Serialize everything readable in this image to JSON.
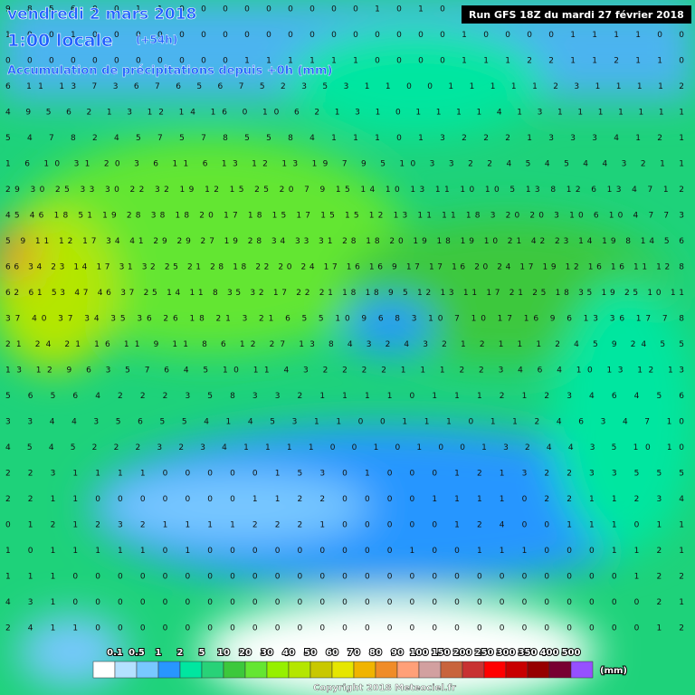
{
  "header": {
    "date": "vendredi 2 mars 2018",
    "time": "1:00 locale",
    "lead": "(+54h)",
    "subtitle": "Accumulation de précipitations depuis +0h (mm)",
    "run": "Run GFS 18Z du mardi 27 février 2018"
  },
  "grid_rows": [
    "9 8 5 6 0 0 1 1 0 0 0 0 0 0 0 0 0 1 0 1 0 0 0 0 0 0 0 0 0 0 0 0",
    "1 0 0 1 0 0 0 0 0 0 0 0 0 0 0 0 0 0 0 0 0 1 0 0 0 0 1 1 1 1 0 0",
    "0 0 0 0 0 0 0 0 0 0 0 1 1 1 1 1 1 0 0 0 0 1 1 1 2 2 1 1 2 1 1 0",
    "6 11 13 7 3 6 7 6 5 6 7 5 2 3 5 3 1 1 0 0 1 1 1 1 1 2 3 1 1 1 1 2",
    "4 9 5 6 2 1 3 12 14 16 0 10 6 2 1 3 1 0 1 1 1 1 4 1 3 1 1 1 1 1 1 1",
    "5 4 7 8 2 4 5 7 5 7 8 5 5 8 4 1 1 1 0 1 3 2 2 2 1 3 3 3 4 1 2 1",
    "1 6 10 31 20 3 6 11 6 13 12 13 19 7 9 5 10 3 3 2 2 4 5 4 5 4 4 3 2 1 1",
    "29 30 25 33 30 22 32 19 12 15 25 20 7 9 15 14 10 13 11 10 10 5 13 8 12 6 13 4 7 1 2",
    "45 46 18 51 19 28 38 18 20 17 18 15 17 15 15 12 13 11 11 18 3 20 20 3 10 6 10 4 7 7 3",
    "5 9 11 12 17 34 41 29 29 27 19 28 34 33 31 28 18 20 19 18 19 10 21 42 23 14 19 8 14 5 6",
    "66 34 23 14 17 31 32 25 21 28 18 22 20 24 17 16 16 9 17 17 16 20 24 17 19 12 16 16 11 12 8",
    "62 61 53 47 46 37 25 14 11 8 35 32 17 22 21 18 18 9 5 12 13 11 17 21 25 18 35 19 25 10 11",
    "37 40 37 34 35 36 26 18 21 3 21 6 5 5 10 9 6 8 3 10 7 10 17 16 9 6 13 36 17 7 8",
    "21 24 21 16 11 9 11 8 6 12 27 13 8 4 3 2 4 3 2 1 2 1 1 1 2 4 5 9 24 5 5",
    "13 12 9 6 3 5 7 6 4 5 10 11 4 3 2 2 2 2 1 1 1 2 2 3 4 6 4 10 13 12 13",
    "5 6 5 6 4 2 2 2 3 5 8 3 3 2 1 1 1 1 0 1 1 1 2 1 2 3 4 6 4 5 6",
    "3 3 4 4 3 5 6 5 5 4 1 4 5 3 1 1 0 0 1 1 1 0 1 1 2 4 6 3 4 7 10",
    "4 5 4 5 2 2 2 3 2 3 4 1 1 1 1 0 0 1 0 1 0 0 1 3 2 4 4 3 5 10 10",
    "2 2 3 1 1 1 1 0 0 0 0 0 1 5 3 0 1 0 0 0 1 2 1 3 2 2 3 3 5 5 5",
    "2 2 1 1 0 0 0 0 0 0 0 1 1 2 2 0 0 0 0 1 1 1 1 0 2 2 1 1 2 3 4",
    "0 1 2 1 2 3 2 1 1 1 1 2 2 2 1 0 0 0 0 0 1 2 4 0 0 1 1 1 0 1 1",
    "1 0 1 1 1 1 1 0 1 0 0 0 0 0 0 0 0 0 1 0 0 1 1 1 0 0 0 1 1 2 1",
    "1 1 1 0 0 0 0 0 0 0 0 0 0 0 0 0 0 0 0 0 0 0 0 0 0 0 0 0 1 2 2",
    "4 3 1 0 0 0 0 0 0 0 0 0 0 0 0 0 0 0 0 0 0 0 0 0 0 0 0 0 0 2 1",
    "2 4 1 1 0 0 0 0 0 0 0 0 0 0 0 0 0 0 0 0 0 0 0 0 0 0 0 0 0 1 2"
  ],
  "legend": {
    "labels": [
      "0.1",
      "0.5",
      "1",
      "2",
      "5",
      "10",
      "20",
      "30",
      "40",
      "50",
      "60",
      "70",
      "80",
      "90",
      "100",
      "150",
      "200",
      "250",
      "300",
      "350",
      "400",
      "500"
    ],
    "colors": [
      "#ffffff",
      "#b4e1ff",
      "#78c8ff",
      "#2896ff",
      "#00e6a0",
      "#28d278",
      "#3cc83c",
      "#64e632",
      "#96f000",
      "#b4e600",
      "#c8c800",
      "#e6e600",
      "#f0b400",
      "#f08c28",
      "#ffa078",
      "#d2a0a0",
      "#c8643c",
      "#c83232",
      "#ff0000",
      "#c80000",
      "#960000",
      "#780032",
      "#9650ff"
    ],
    "unit": "(mm)"
  },
  "footer": "Copyright 2018 Meteociel.fr"
}
